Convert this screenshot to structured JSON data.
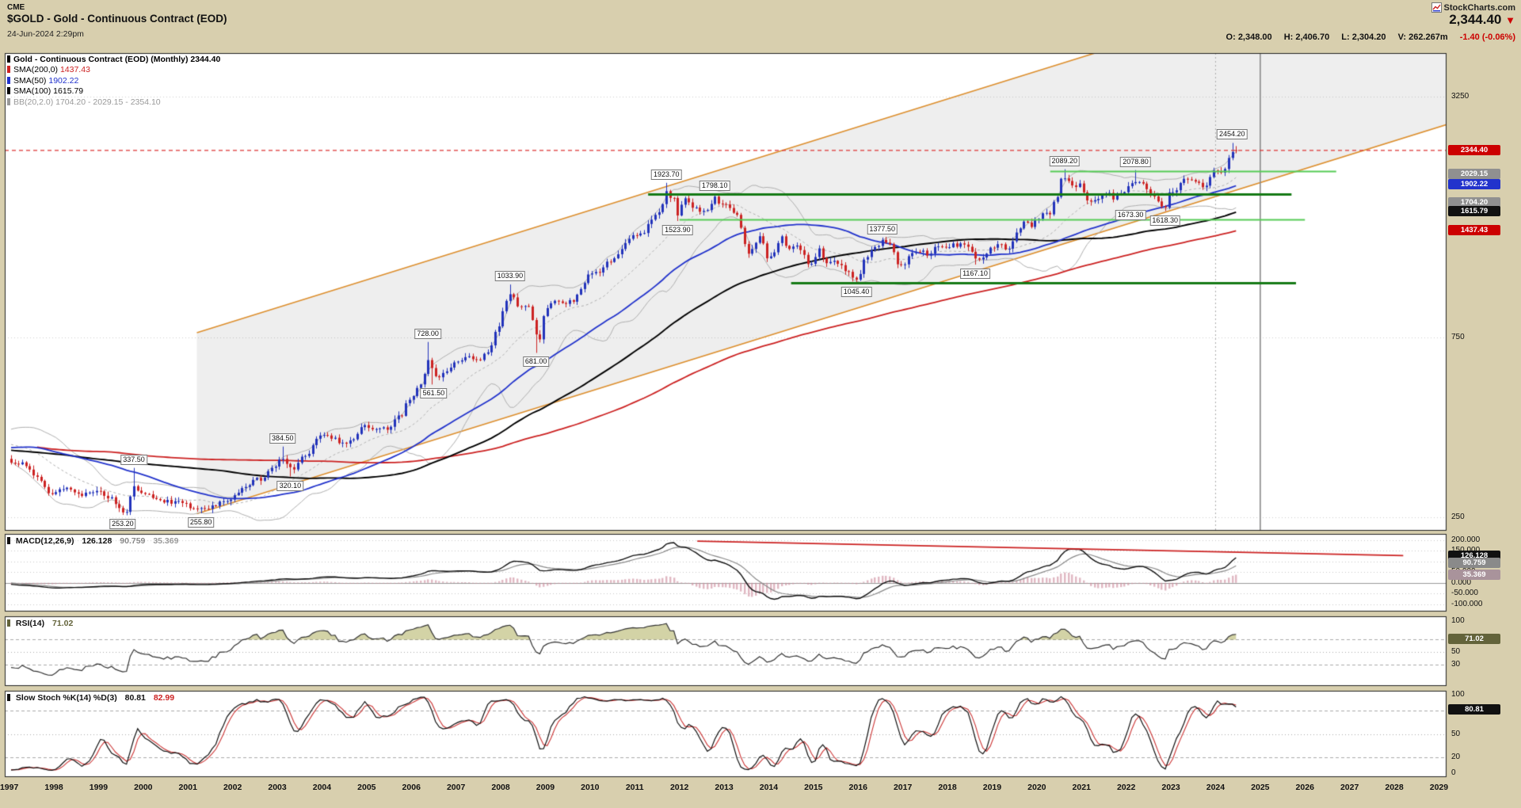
{
  "header": {
    "exchange": "CME",
    "title": "$GOLD - Gold - Continuous Contract (EOD)",
    "datetime": "24-Jun-2024 2:29pm",
    "brand": "StockCharts.com",
    "price": "2,344.40",
    "direction": "▼",
    "quote": {
      "o_label": "O:",
      "o": "2,348.00",
      "h_label": "H:",
      "h": "2,406.70",
      "l_label": "L:",
      "l": "2,304.20",
      "v_label": "V:",
      "v": "262.267m",
      "change": "-1.40 (-0.06%)"
    }
  },
  "price_panel": {
    "legend": [
      {
        "label": "Gold - Continuous Contract (EOD) (Monthly)",
        "value": "2344.40",
        "bullet": "#000000",
        "label_color": "#000000",
        "value_color": "#000000"
      },
      {
        "label": "SMA(200,0)",
        "value": "1437.43",
        "bullet": "#cc2222",
        "label_color": "#000000",
        "value_color": "#cc2222"
      },
      {
        "label": "SMA(50)",
        "value": "1902.22",
        "bullet": "#2233cc",
        "label_color": "#000000",
        "value_color": "#2233cc"
      },
      {
        "label": "SMA(100)",
        "value": "1615.79",
        "bullet": "#000000",
        "label_color": "#000000",
        "value_color": "#000000"
      },
      {
        "label": "BB(20,2.0)",
        "value": "1704.20 - 2029.15 - 2354.10",
        "bullet": "#999999",
        "label_color": "#999999",
        "value_color": "#999999"
      }
    ],
    "y_ticks": [
      {
        "v": 3250,
        "label": "3250"
      },
      {
        "v": 750,
        "label": "750"
      },
      {
        "v": 250,
        "label": "250"
      }
    ],
    "badges": [
      {
        "text": "2344.40",
        "v": 2344.4,
        "bg": "#cc0000"
      },
      {
        "text": "2029.15",
        "v": 2029.15,
        "bg": "#909090"
      },
      {
        "text": "1902.22",
        "v": 1902.22,
        "bg": "#2233cc"
      },
      {
        "text": "1704.20",
        "v": 1704.2,
        "bg": "#909090"
      },
      {
        "text": "1615.79",
        "v": 1615.79,
        "bg": "#111111"
      },
      {
        "text": "1437.43",
        "v": 1437.43,
        "bg": "#cc0000"
      }
    ]
  },
  "macd_panel": {
    "legend_label": "MACD(12,26,9)",
    "values": [
      "126.128",
      "90.759",
      "35.369"
    ],
    "ticks": [
      {
        "v": 200,
        "label": "200.000"
      },
      {
        "v": 150,
        "label": "150.000"
      },
      {
        "v": 100,
        "label": "100.000"
      },
      {
        "v": 50,
        "label": "50.000"
      },
      {
        "v": 0,
        "label": "0.000"
      },
      {
        "v": -50,
        "label": "-50.000"
      },
      {
        "v": -100,
        "label": "-100.000"
      }
    ],
    "badges": [
      {
        "text": "126.128",
        "v": 126.128,
        "bg": "#111111"
      },
      {
        "text": "90.759",
        "v": 90.759,
        "bg": "#8a8a8a"
      },
      {
        "text": "35.369",
        "v": 35.369,
        "bg": "#a9939b"
      }
    ],
    "trendline": {
      "t1": 2012.4,
      "v1": 196,
      "t2": 2028.2,
      "v2": 128
    }
  },
  "rsi_panel": {
    "legend_label": "RSI(14)",
    "value": "71.02",
    "ticks": [
      {
        "v": 100,
        "label": "100"
      },
      {
        "v": 70,
        "label": "70"
      },
      {
        "v": 50,
        "label": "50"
      },
      {
        "v": 30,
        "label": "30"
      }
    ],
    "badge": {
      "text": "71.02",
      "v": 71.02,
      "bg": "#63633a"
    }
  },
  "stoch_panel": {
    "legend_label": "Slow Stoch %K(14) %D(3)",
    "values": [
      "80.81",
      "82.99"
    ],
    "ticks": [
      {
        "v": 100,
        "label": "100"
      },
      {
        "v": 80,
        "label": "80"
      },
      {
        "v": 50,
        "label": "50"
      },
      {
        "v": 20,
        "label": "20"
      },
      {
        "v": 0,
        "label": "0"
      }
    ],
    "badge": {
      "text": "80.81",
      "v": 80.81,
      "bg": "#111111"
    }
  },
  "x_axis": {
    "years": [
      1997,
      1998,
      1999,
      2000,
      2001,
      2002,
      2003,
      2004,
      2005,
      2006,
      2007,
      2008,
      2009,
      2010,
      2011,
      2012,
      2013,
      2014,
      2015,
      2016,
      2017,
      2018,
      2019,
      2020,
      2021,
      2022,
      2023,
      2024,
      2025,
      2026,
      2027,
      2028,
      2029
    ]
  },
  "colors": {
    "up": "#2233bb",
    "down": "#cc2222",
    "sma50": "#2233cc",
    "sma100": "#000000",
    "sma200": "#cc2222",
    "bb": "#b0b0b0",
    "channel": "#dd8f2e",
    "channel_fill": "rgba(120,120,120,0.13)",
    "green_dark": "#157a15",
    "green_light": "#55cc55",
    "last_price": "#dd3333",
    "macd": "#111111",
    "macd_signal": "#888888",
    "macd_hist": "rgba(204,136,153,0.6)",
    "macd_trend": "#cc2222",
    "rsi": "#333333",
    "rsi_fill": "rgba(128,128,0,0.35)",
    "stoch_k": "#111111",
    "stoch_d": "#cc3333"
  },
  "chart_data": {
    "type": "candlestick",
    "title": "Gold - Continuous Contract (EOD) (Monthly)",
    "x_axis": {
      "start": 1997,
      "end": 2029,
      "unit": "year"
    },
    "y_axis": {
      "scale": "log",
      "ticks": [
        250,
        750,
        3250
      ],
      "visible_range": [
        230,
        4250
      ]
    },
    "last_candle": {
      "open": 2348.0,
      "high": 2406.7,
      "low": 2304.2,
      "close": 2344.4
    },
    "indicator_readouts": {
      "macd": 126.128,
      "macd_signal": 90.759,
      "macd_hist": 35.369,
      "rsi": 71.02,
      "stoch_k": 80.81,
      "stoch_d": 82.99,
      "sma200": 1437.43,
      "sma50": 1902.22,
      "sma100": 1615.79,
      "bb": [
        1704.2,
        2029.15,
        2354.1
      ]
    },
    "price_anchors": [
      [
        1981.0,
        560
      ],
      [
        1981.5,
        430
      ],
      [
        1982.3,
        330
      ],
      [
        1983.1,
        480
      ],
      [
        1983.9,
        382
      ],
      [
        1985.1,
        300
      ],
      [
        1986.0,
        342
      ],
      [
        1987.0,
        402
      ],
      [
        1987.9,
        478
      ],
      [
        1988.8,
        415
      ],
      [
        1989.7,
        368
      ],
      [
        1990.1,
        398
      ],
      [
        1991.0,
        366
      ],
      [
        1992.5,
        340
      ],
      [
        1993.2,
        328
      ],
      [
        1993.7,
        400
      ],
      [
        1994.5,
        386
      ],
      [
        1995.5,
        384
      ],
      [
        1996.1,
        412
      ],
      [
        1996.6,
        386
      ],
      [
        1997.0,
        352
      ],
      [
        1997.3,
        345
      ],
      [
        1997.6,
        323
      ],
      [
        1997.95,
        289
      ],
      [
        1998.3,
        301
      ],
      [
        1998.6,
        286
      ],
      [
        1998.95,
        291
      ],
      [
        1999.3,
        280
      ],
      [
        1999.5,
        260
      ],
      [
        1999.6,
        256
      ],
      [
        1999.78,
        302
      ],
      [
        1999.85,
        298
      ],
      [
        1999.95,
        288
      ],
      [
        2000.15,
        284
      ],
      [
        2000.45,
        276
      ],
      [
        2000.7,
        274
      ],
      [
        2000.95,
        272
      ],
      [
        2001.1,
        263
      ],
      [
        2001.32,
        261
      ],
      [
        2001.55,
        268
      ],
      [
        2001.78,
        275
      ],
      [
        2001.95,
        277
      ],
      [
        2002.25,
        303
      ],
      [
        2002.6,
        315
      ],
      [
        2002.95,
        344
      ],
      [
        2003.12,
        359
      ],
      [
        2003.32,
        335
      ],
      [
        2003.62,
        364
      ],
      [
        2003.95,
        412
      ],
      [
        2004.25,
        406
      ],
      [
        2004.45,
        390
      ],
      [
        2004.7,
        402
      ],
      [
        2004.92,
        442
      ],
      [
        2005.15,
        424
      ],
      [
        2005.45,
        430
      ],
      [
        2005.75,
        462
      ],
      [
        2005.95,
        514
      ],
      [
        2006.2,
        562
      ],
      [
        2006.38,
        645
      ],
      [
        2006.55,
        588
      ],
      [
        2006.78,
        602
      ],
      [
        2006.95,
        636
      ],
      [
        2007.2,
        662
      ],
      [
        2007.5,
        656
      ],
      [
        2007.72,
        682
      ],
      [
        2007.92,
        792
      ],
      [
        2008.12,
        928
      ],
      [
        2008.22,
        968
      ],
      [
        2008.42,
        888
      ],
      [
        2008.58,
        922
      ],
      [
        2008.72,
        828
      ],
      [
        2008.85,
        728
      ],
      [
        2008.98,
        872
      ],
      [
        2009.18,
        938
      ],
      [
        2009.38,
        922
      ],
      [
        2009.58,
        932
      ],
      [
        2009.78,
        996
      ],
      [
        2009.95,
        1096
      ],
      [
        2010.18,
        1112
      ],
      [
        2010.42,
        1182
      ],
      [
        2010.62,
        1246
      ],
      [
        2010.82,
        1342
      ],
      [
        2010.95,
        1408
      ],
      [
        2011.18,
        1412
      ],
      [
        2011.38,
        1538
      ],
      [
        2011.58,
        1622
      ],
      [
        2011.69,
        1826
      ],
      [
        2011.78,
        1772
      ],
      [
        2011.88,
        1742
      ],
      [
        2011.97,
        1568
      ],
      [
        2012.1,
        1736
      ],
      [
        2012.3,
        1662
      ],
      [
        2012.47,
        1602
      ],
      [
        2012.63,
        1618
      ],
      [
        2012.79,
        1768
      ],
      [
        2012.95,
        1672
      ],
      [
        2013.1,
        1662
      ],
      [
        2013.27,
        1592
      ],
      [
        2013.37,
        1472
      ],
      [
        2013.52,
        1232
      ],
      [
        2013.68,
        1312
      ],
      [
        2013.82,
        1392
      ],
      [
        2013.97,
        1202
      ],
      [
        2014.12,
        1252
      ],
      [
        2014.27,
        1382
      ],
      [
        2014.43,
        1292
      ],
      [
        2014.58,
        1316
      ],
      [
        2014.73,
        1284
      ],
      [
        2014.87,
        1168
      ],
      [
        2014.97,
        1184
      ],
      [
        2015.12,
        1282
      ],
      [
        2015.28,
        1186
      ],
      [
        2015.43,
        1182
      ],
      [
        2015.58,
        1172
      ],
      [
        2015.73,
        1132
      ],
      [
        2015.88,
        1066
      ],
      [
        2015.98,
        1062
      ],
      [
        2016.17,
        1232
      ],
      [
        2016.37,
        1292
      ],
      [
        2016.55,
        1348
      ],
      [
        2016.72,
        1312
      ],
      [
        2016.87,
        1176
      ],
      [
        2016.97,
        1152
      ],
      [
        2017.17,
        1250
      ],
      [
        2017.37,
        1268
      ],
      [
        2017.57,
        1246
      ],
      [
        2017.77,
        1318
      ],
      [
        2017.97,
        1302
      ],
      [
        2018.17,
        1318
      ],
      [
        2018.37,
        1314
      ],
      [
        2018.57,
        1252
      ],
      [
        2018.67,
        1202
      ],
      [
        2018.82,
        1216
      ],
      [
        2018.97,
        1282
      ],
      [
        2019.17,
        1312
      ],
      [
        2019.37,
        1286
      ],
      [
        2019.57,
        1412
      ],
      [
        2019.72,
        1524
      ],
      [
        2019.87,
        1466
      ],
      [
        2019.97,
        1522
      ],
      [
        2020.17,
        1592
      ],
      [
        2020.27,
        1584
      ],
      [
        2020.42,
        1736
      ],
      [
        2020.57,
        1978
      ],
      [
        2020.67,
        1964
      ],
      [
        2020.82,
        1882
      ],
      [
        2020.97,
        1894
      ],
      [
        2021.12,
        1716
      ],
      [
        2021.23,
        1712
      ],
      [
        2021.42,
        1768
      ],
      [
        2021.57,
        1814
      ],
      [
        2021.72,
        1756
      ],
      [
        2021.82,
        1784
      ],
      [
        2021.97,
        1828
      ],
      [
        2022.12,
        1908
      ],
      [
        2022.22,
        1942
      ],
      [
        2022.37,
        1896
      ],
      [
        2022.57,
        1806
      ],
      [
        2022.67,
        1716
      ],
      [
        2022.77,
        1672
      ],
      [
        2022.87,
        1638
      ],
      [
        2022.97,
        1814
      ],
      [
        2023.12,
        1826
      ],
      [
        2023.27,
        1986
      ],
      [
        2023.42,
        1962
      ],
      [
        2023.57,
        1918
      ],
      [
        2023.72,
        1866
      ],
      [
        2023.8,
        1892
      ],
      [
        2023.95,
        2062
      ],
      [
        2024.08,
        2042
      ],
      [
        2024.17,
        2048
      ],
      [
        2024.27,
        2232
      ],
      [
        2024.33,
        2288
      ],
      [
        2024.4,
        2326
      ],
      [
        2024.46,
        2344.4
      ]
    ],
    "extremes": [
      {
        "t": 1999.54,
        "price": 253.2,
        "kind": "low",
        "label": "253.20"
      },
      {
        "t": 1999.79,
        "price": 337.5,
        "kind": "high",
        "label": "337.50"
      },
      {
        "t": 2001.29,
        "price": 255.8,
        "kind": "low",
        "label": "255.80"
      },
      {
        "t": 2003.12,
        "price": 384.5,
        "kind": "high",
        "label": "384.50"
      },
      {
        "t": 2003.29,
        "price": 320.1,
        "kind": "low",
        "label": "320.10"
      },
      {
        "t": 2006.37,
        "price": 728.0,
        "kind": "high",
        "label": "728.00"
      },
      {
        "t": 2006.5,
        "price": 561.5,
        "kind": "low",
        "label": "561.50"
      },
      {
        "t": 2008.21,
        "price": 1033.9,
        "kind": "high",
        "label": "1033.90"
      },
      {
        "t": 2008.79,
        "price": 681.0,
        "kind": "low",
        "label": "681.00"
      },
      {
        "t": 2011.71,
        "price": 1923.7,
        "kind": "high",
        "label": "1923.70"
      },
      {
        "t": 2011.96,
        "price": 1523.9,
        "kind": "low",
        "label": "1523.90"
      },
      {
        "t": 2012.79,
        "price": 1798.1,
        "kind": "high",
        "label": "1798.10"
      },
      {
        "t": 2015.96,
        "price": 1045.4,
        "kind": "low",
        "label": "1045.40"
      },
      {
        "t": 2016.54,
        "price": 1377.5,
        "kind": "high",
        "label": "1377.50"
      },
      {
        "t": 2018.62,
        "price": 1167.1,
        "kind": "low",
        "label": "1167.10"
      },
      {
        "t": 2020.62,
        "price": 2089.2,
        "kind": "high",
        "label": "2089.20"
      },
      {
        "t": 2021.21,
        "price": 1673.3,
        "kind": "low",
        "label": "1673.30",
        "dx": 50
      },
      {
        "t": 2022.21,
        "price": 2078.8,
        "kind": "high",
        "label": "2078.80"
      },
      {
        "t": 2022.87,
        "price": 1618.3,
        "kind": "low",
        "label": "1618.30"
      },
      {
        "t": 2024.37,
        "price": 2454.2,
        "kind": "high",
        "label": "2454.20"
      }
    ],
    "overlays": {
      "channel": {
        "t1": 2001.2,
        "lower1": 255,
        "upper1": 770,
        "t2": 2029.2,
        "lower2": 2752,
        "upper2": 8310
      },
      "green_lines": [
        {
          "p": 2070,
          "t1": 2020.3,
          "t2": 2026.7,
          "tone": "light",
          "w": 2
        },
        {
          "p": 1798,
          "t1": 2011.3,
          "t2": 2025.7,
          "tone": "dark",
          "w": 3
        },
        {
          "p": 1535,
          "t1": 2012.0,
          "t2": 2026.0,
          "tone": "light",
          "w": 2
        },
        {
          "p": 1046,
          "t1": 2014.5,
          "t2": 2025.8,
          "tone": "dark",
          "w": 3
        }
      ],
      "vlines": [
        {
          "t": 2024.0,
          "style": "dotted"
        },
        {
          "t": 2025.0,
          "style": "solid"
        }
      ],
      "last_price_line": 2344.4
    }
  }
}
